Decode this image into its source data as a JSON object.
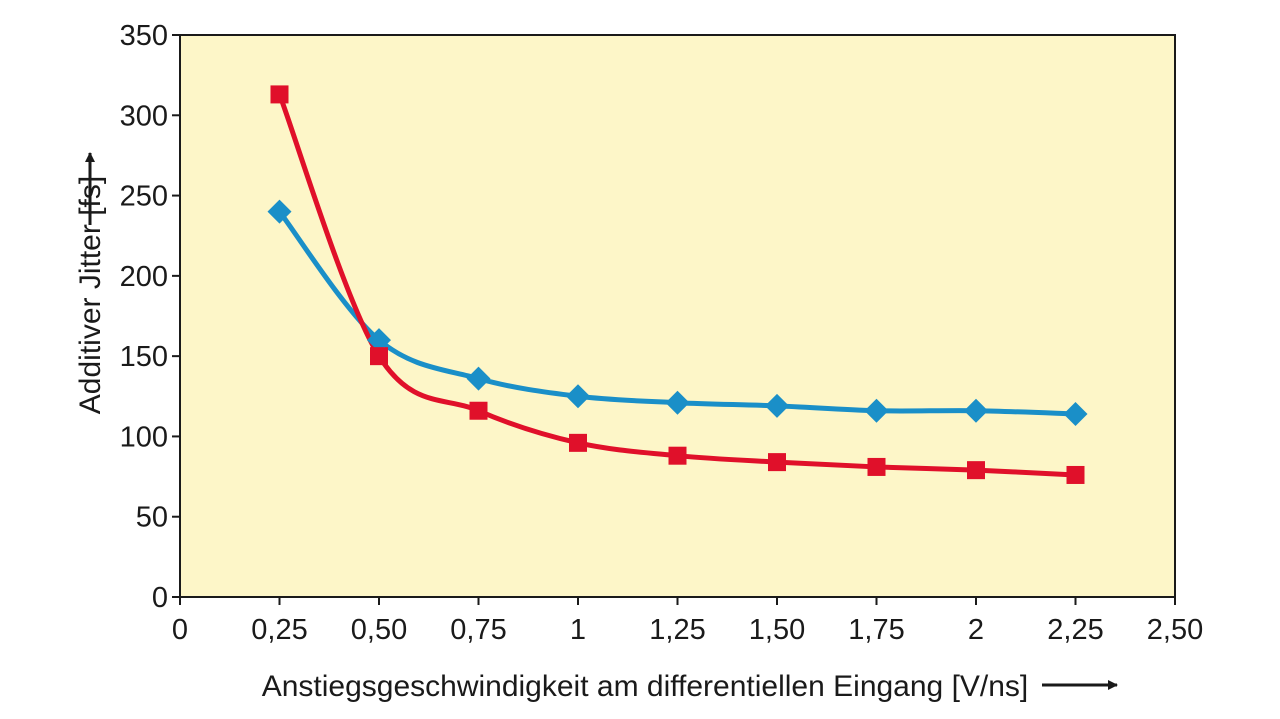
{
  "chart_data": {
    "type": "line",
    "xlabel": "Anstiegsgeschwindigkeit am differentiellen Eingang [V/ns]",
    "ylabel": "Additiver Jitter [fs]",
    "xlim": [
      0,
      2.5
    ],
    "ylim": [
      0,
      350
    ],
    "x_ticks": [
      0,
      0.25,
      0.5,
      0.75,
      1,
      1.25,
      1.5,
      1.75,
      2,
      2.25,
      2.5
    ],
    "x_tick_labels": [
      "0",
      "0,25",
      "0,50",
      "0,75",
      "1",
      "1,25",
      "1,50",
      "1,75",
      "2",
      "2,25",
      "2,50"
    ],
    "y_ticks": [
      0,
      50,
      100,
      150,
      200,
      250,
      300,
      350
    ],
    "y_tick_labels": [
      "0",
      "50",
      "100",
      "150",
      "200",
      "250",
      "300",
      "350"
    ],
    "grid": false,
    "plot_background": "#fdf6c8",
    "x": [
      0.25,
      0.5,
      0.75,
      1,
      1.25,
      1.5,
      1.75,
      2,
      2.25
    ],
    "series": [
      {
        "color": "#1a8fc8",
        "marker": "diamond",
        "values": [
          240,
          160,
          136,
          125,
          121,
          119,
          116,
          116,
          114
        ]
      },
      {
        "color": "#e0102a",
        "marker": "square",
        "values": [
          313,
          150,
          116,
          96,
          88,
          84,
          81,
          79,
          76
        ]
      }
    ]
  }
}
